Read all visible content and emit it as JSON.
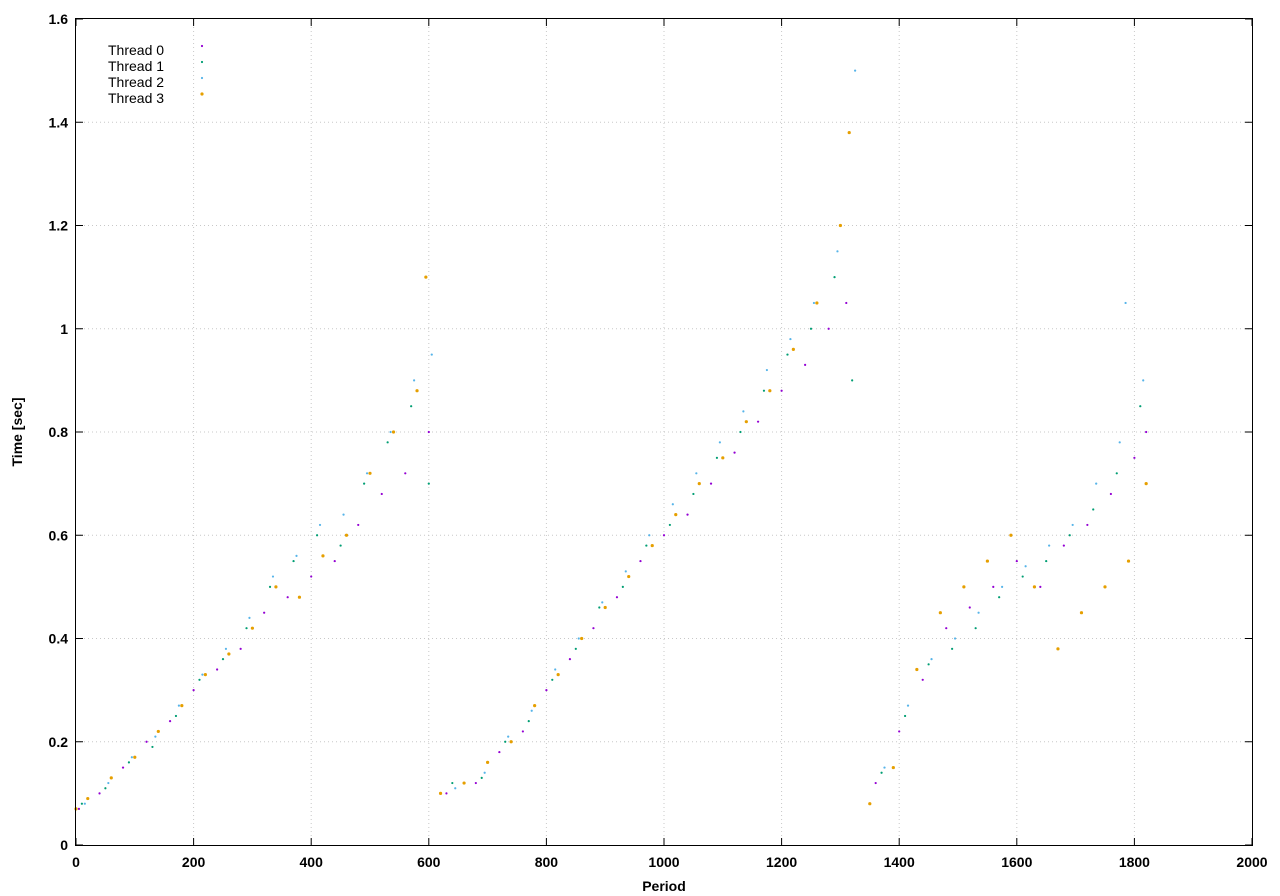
{
  "chart_data": {
    "type": "scatter",
    "title": "",
    "xlabel": "Period",
    "ylabel": "Time [sec]",
    "xlim": [
      0,
      2000
    ],
    "ylim": [
      0,
      1.6
    ],
    "xticks": [
      0,
      200,
      400,
      600,
      800,
      1000,
      1200,
      1400,
      1600,
      1800,
      2000
    ],
    "yticks": [
      0,
      0.2,
      0.4,
      0.6,
      0.8,
      1,
      1.2,
      1.4,
      1.6
    ],
    "grid": true,
    "legend_position": "top-left",
    "series": [
      {
        "name": "Thread 0",
        "color": "#9400d3",
        "marker_size": 1.1,
        "points": [
          [
            5,
            0.07
          ],
          [
            40,
            0.1
          ],
          [
            80,
            0.15
          ],
          [
            120,
            0.2
          ],
          [
            160,
            0.24
          ],
          [
            200,
            0.3
          ],
          [
            240,
            0.34
          ],
          [
            280,
            0.38
          ],
          [
            320,
            0.45
          ],
          [
            360,
            0.48
          ],
          [
            400,
            0.52
          ],
          [
            440,
            0.55
          ],
          [
            480,
            0.62
          ],
          [
            520,
            0.68
          ],
          [
            560,
            0.72
          ],
          [
            600,
            0.8
          ],
          [
            630,
            0.1
          ],
          [
            680,
            0.12
          ],
          [
            720,
            0.18
          ],
          [
            760,
            0.22
          ],
          [
            800,
            0.3
          ],
          [
            840,
            0.36
          ],
          [
            880,
            0.42
          ],
          [
            920,
            0.48
          ],
          [
            960,
            0.55
          ],
          [
            1000,
            0.6
          ],
          [
            1040,
            0.64
          ],
          [
            1080,
            0.7
          ],
          [
            1120,
            0.76
          ],
          [
            1160,
            0.82
          ],
          [
            1200,
            0.88
          ],
          [
            1240,
            0.93
          ],
          [
            1280,
            1.0
          ],
          [
            1310,
            1.05
          ],
          [
            1360,
            0.12
          ],
          [
            1400,
            0.22
          ],
          [
            1440,
            0.32
          ],
          [
            1480,
            0.42
          ],
          [
            1520,
            0.46
          ],
          [
            1560,
            0.5
          ],
          [
            1600,
            0.55
          ],
          [
            1640,
            0.5
          ],
          [
            1680,
            0.58
          ],
          [
            1720,
            0.62
          ],
          [
            1760,
            0.68
          ],
          [
            1800,
            0.75
          ],
          [
            1820,
            0.8
          ]
        ]
      },
      {
        "name": "Thread 1",
        "color": "#009e73",
        "marker_size": 1.1,
        "points": [
          [
            10,
            0.08
          ],
          [
            50,
            0.11
          ],
          [
            90,
            0.16
          ],
          [
            130,
            0.19
          ],
          [
            170,
            0.25
          ],
          [
            210,
            0.32
          ],
          [
            250,
            0.36
          ],
          [
            290,
            0.42
          ],
          [
            330,
            0.5
          ],
          [
            370,
            0.55
          ],
          [
            410,
            0.6
          ],
          [
            450,
            0.58
          ],
          [
            490,
            0.7
          ],
          [
            530,
            0.78
          ],
          [
            570,
            0.85
          ],
          [
            600,
            0.7
          ],
          [
            640,
            0.12
          ],
          [
            690,
            0.13
          ],
          [
            730,
            0.2
          ],
          [
            770,
            0.24
          ],
          [
            810,
            0.32
          ],
          [
            850,
            0.38
          ],
          [
            890,
            0.46
          ],
          [
            930,
            0.5
          ],
          [
            970,
            0.58
          ],
          [
            1010,
            0.62
          ],
          [
            1050,
            0.68
          ],
          [
            1090,
            0.75
          ],
          [
            1130,
            0.8
          ],
          [
            1170,
            0.88
          ],
          [
            1210,
            0.95
          ],
          [
            1250,
            1.0
          ],
          [
            1290,
            1.1
          ],
          [
            1320,
            0.9
          ],
          [
            1370,
            0.14
          ],
          [
            1410,
            0.25
          ],
          [
            1450,
            0.35
          ],
          [
            1490,
            0.38
          ],
          [
            1530,
            0.42
          ],
          [
            1570,
            0.48
          ],
          [
            1610,
            0.52
          ],
          [
            1650,
            0.55
          ],
          [
            1690,
            0.6
          ],
          [
            1730,
            0.65
          ],
          [
            1770,
            0.72
          ],
          [
            1810,
            0.85
          ]
        ]
      },
      {
        "name": "Thread 2",
        "color": "#56b4e9",
        "marker_size": 1.1,
        "points": [
          [
            15,
            0.08
          ],
          [
            55,
            0.12
          ],
          [
            95,
            0.17
          ],
          [
            135,
            0.21
          ],
          [
            175,
            0.27
          ],
          [
            215,
            0.33
          ],
          [
            255,
            0.38
          ],
          [
            295,
            0.44
          ],
          [
            335,
            0.52
          ],
          [
            375,
            0.56
          ],
          [
            415,
            0.62
          ],
          [
            455,
            0.64
          ],
          [
            495,
            0.72
          ],
          [
            535,
            0.8
          ],
          [
            575,
            0.9
          ],
          [
            605,
            0.95
          ],
          [
            645,
            0.11
          ],
          [
            695,
            0.14
          ],
          [
            735,
            0.21
          ],
          [
            775,
            0.26
          ],
          [
            815,
            0.34
          ],
          [
            855,
            0.4
          ],
          [
            895,
            0.47
          ],
          [
            935,
            0.53
          ],
          [
            975,
            0.6
          ],
          [
            1015,
            0.66
          ],
          [
            1055,
            0.72
          ],
          [
            1095,
            0.78
          ],
          [
            1135,
            0.84
          ],
          [
            1175,
            0.92
          ],
          [
            1215,
            0.98
          ],
          [
            1255,
            1.05
          ],
          [
            1295,
            1.15
          ],
          [
            1325,
            1.5
          ],
          [
            1375,
            0.15
          ],
          [
            1415,
            0.27
          ],
          [
            1455,
            0.36
          ],
          [
            1495,
            0.4
          ],
          [
            1535,
            0.45
          ],
          [
            1575,
            0.5
          ],
          [
            1615,
            0.54
          ],
          [
            1655,
            0.58
          ],
          [
            1695,
            0.62
          ],
          [
            1735,
            0.7
          ],
          [
            1775,
            0.78
          ],
          [
            1785,
            1.05
          ],
          [
            1815,
            0.9
          ]
        ]
      },
      {
        "name": "Thread 3",
        "color": "#e69f00",
        "marker_size": 1.6,
        "points": [
          [
            0,
            0.07
          ],
          [
            20,
            0.09
          ],
          [
            60,
            0.13
          ],
          [
            100,
            0.17
          ],
          [
            140,
            0.22
          ],
          [
            180,
            0.27
          ],
          [
            220,
            0.33
          ],
          [
            260,
            0.37
          ],
          [
            300,
            0.42
          ],
          [
            340,
            0.5
          ],
          [
            380,
            0.48
          ],
          [
            420,
            0.56
          ],
          [
            460,
            0.6
          ],
          [
            500,
            0.72
          ],
          [
            540,
            0.8
          ],
          [
            580,
            0.88
          ],
          [
            595,
            1.1
          ],
          [
            620,
            0.1
          ],
          [
            660,
            0.12
          ],
          [
            700,
            0.16
          ],
          [
            740,
            0.2
          ],
          [
            780,
            0.27
          ],
          [
            820,
            0.33
          ],
          [
            860,
            0.4
          ],
          [
            900,
            0.46
          ],
          [
            940,
            0.52
          ],
          [
            980,
            0.58
          ],
          [
            1020,
            0.64
          ],
          [
            1060,
            0.7
          ],
          [
            1100,
            0.75
          ],
          [
            1140,
            0.82
          ],
          [
            1180,
            0.88
          ],
          [
            1220,
            0.96
          ],
          [
            1260,
            1.05
          ],
          [
            1300,
            1.2
          ],
          [
            1315,
            1.38
          ],
          [
            1350,
            0.08
          ],
          [
            1390,
            0.15
          ],
          [
            1430,
            0.34
          ],
          [
            1470,
            0.45
          ],
          [
            1510,
            0.5
          ],
          [
            1550,
            0.55
          ],
          [
            1590,
            0.6
          ],
          [
            1630,
            0.5
          ],
          [
            1670,
            0.38
          ],
          [
            1710,
            0.45
          ],
          [
            1750,
            0.5
          ],
          [
            1790,
            0.55
          ],
          [
            1820,
            0.7
          ]
        ]
      }
    ]
  }
}
